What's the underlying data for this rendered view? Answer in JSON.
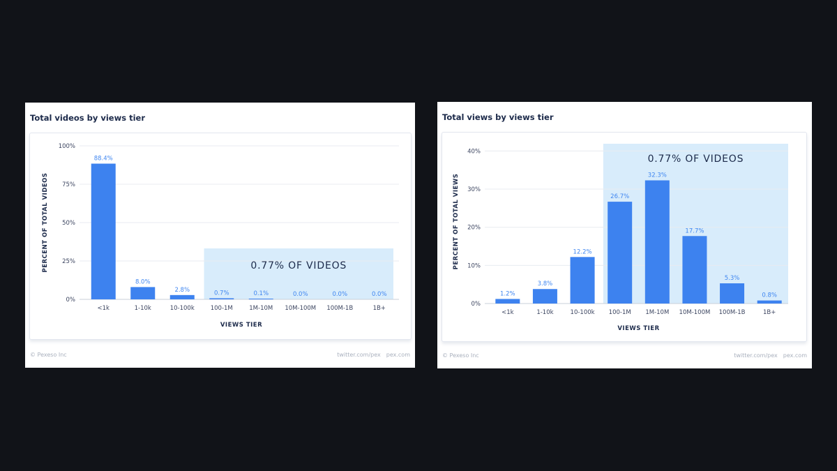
{
  "chart_data": [
    {
      "type": "bar",
      "title": "Total videos by views tier",
      "xlabel": "VIEWS TIER",
      "ylabel": "PERCENT OF TOTAL VIDEOS",
      "ylim": [
        0,
        100
      ],
      "yticks": [
        "0%",
        "25%",
        "50%",
        "75%",
        "100%"
      ],
      "ytick_values": [
        0,
        25,
        50,
        75,
        100
      ],
      "categories": [
        "<1k",
        "1-10k",
        "10-100k",
        "100-1M",
        "1M-10M",
        "10M-100M",
        "100M-1B",
        "1B+"
      ],
      "values": [
        88.4,
        8.0,
        2.8,
        0.7,
        0.1,
        0.0,
        0.0,
        0.0
      ],
      "value_labels": [
        "88.4%",
        "8.0%",
        "2.8%",
        "0.7%",
        "0.1%",
        "0.0%",
        "0.0%",
        "0.0%"
      ],
      "annotation": "0.77% OF VIDEOS",
      "highlight_from_category": "100-1M",
      "grid": true,
      "colors": {
        "bar": "#3d82ef",
        "highlight": "#d8ecfb",
        "label": "#3f86f0"
      }
    },
    {
      "type": "bar",
      "title": "Total views by views tier",
      "xlabel": "VIEWS TIER",
      "ylabel": "PERCENT OF TOTAL VIEWS",
      "ylim": [
        0,
        43
      ],
      "yticks": [
        "0%",
        "10%",
        "20%",
        "30%",
        "40%"
      ],
      "ytick_values": [
        0,
        10,
        20,
        30,
        40
      ],
      "categories": [
        "<1k",
        "1-10k",
        "10-100k",
        "100-1M",
        "1M-10M",
        "10M-100M",
        "100M-1B",
        "1B+"
      ],
      "values": [
        1.2,
        3.8,
        12.2,
        26.7,
        32.3,
        17.7,
        5.3,
        0.8
      ],
      "value_labels": [
        "1.2%",
        "3.8%",
        "12.2%",
        "26.7%",
        "32.3%",
        "17.7%",
        "5.3%",
        "0.8%"
      ],
      "annotation": "0.77% OF VIDEOS",
      "highlight_from_category": "100-1M",
      "grid": true,
      "colors": {
        "bar": "#3d82ef",
        "highlight": "#d8ecfb",
        "label": "#3f86f0"
      }
    }
  ],
  "footer": {
    "copyright": "© Pexeso Inc",
    "twitter": "twitter.com/pex",
    "site": "pex.com"
  }
}
